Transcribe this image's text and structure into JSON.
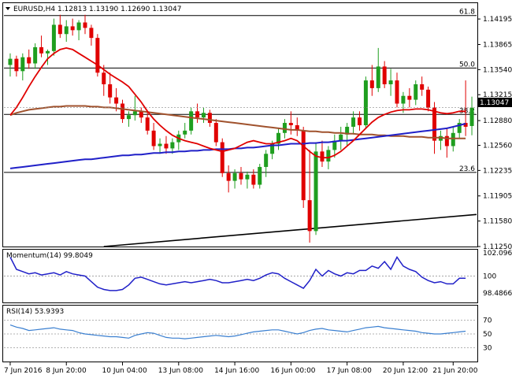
{
  "main": {
    "title": "EURUSD,H4  1.12813 1.13190 1.12690 1.13047",
    "price_ticks": [
      "1.14195",
      "1.13865",
      "1.13540",
      "1.13215",
      "1.12880",
      "1.12560",
      "1.12235",
      "1.11905",
      "1.11580",
      "1.11250"
    ],
    "current_price": "1.13047",
    "current_price_value": 1.13047,
    "fib_levels": [
      {
        "label": "61.8",
        "price": 1.1424
      },
      {
        "label": "50.0",
        "price": 1.1356
      },
      {
        "label": "38.2",
        "price": 1.1296
      },
      {
        "label": "23.6",
        "price": 1.1221
      }
    ],
    "colors": {
      "up": "#1f9e1f",
      "down": "#e00000",
      "sma20": "#e00000",
      "sma100": "#2020c8",
      "sma200": "#a0522d",
      "trend": "#000000",
      "fib": "#000000"
    }
  },
  "momentum": {
    "title": "Momentum(14) 99.8049",
    "ticks": [
      "102.0969",
      "100",
      "98.4866"
    ]
  },
  "rsi": {
    "title": "RSI(14) 53.9393",
    "ticks": [
      "70",
      "50",
      "30"
    ]
  },
  "xaxis": {
    "labels": [
      "7 Jun 2016",
      "8 Jun 20:00",
      "10 Jun 04:00",
      "13 Jun 08:00",
      "14 Jun 16:00",
      "16 Jun 00:00",
      "17 Jun 08:00",
      "20 Jun 12:00",
      "21 Jun 20:00"
    ]
  },
  "chart_data": [
    {
      "type": "candlestick",
      "title": "EURUSD,H4  1.12813 1.13190 1.12690 1.13047",
      "ylim": [
        1.1125,
        1.144
      ],
      "ohlc": [
        [
          1.136,
          1.1375,
          1.1345,
          1.1368
        ],
        [
          1.1368,
          1.1372,
          1.1345,
          1.1352
        ],
        [
          1.1352,
          1.1375,
          1.134,
          1.137
        ],
        [
          1.137,
          1.138,
          1.1355,
          1.1362
        ],
        [
          1.1362,
          1.1388,
          1.1355,
          1.1383
        ],
        [
          1.1383,
          1.1398,
          1.137,
          1.1375
        ],
        [
          1.1375,
          1.138,
          1.136,
          1.1378
        ],
        [
          1.1378,
          1.142,
          1.1372,
          1.1412
        ],
        [
          1.1412,
          1.1425,
          1.1395,
          1.14
        ],
        [
          1.14,
          1.1418,
          1.139,
          1.141
        ],
        [
          1.141,
          1.142,
          1.1398,
          1.1405
        ],
        [
          1.1405,
          1.1418,
          1.1392,
          1.1415
        ],
        [
          1.1415,
          1.1425,
          1.14,
          1.1408
        ],
        [
          1.1408,
          1.1412,
          1.1385,
          1.1395
        ],
        [
          1.1395,
          1.14,
          1.1345,
          1.135
        ],
        [
          1.135,
          1.136,
          1.132,
          1.1335
        ],
        [
          1.1335,
          1.135,
          1.131,
          1.1318
        ],
        [
          1.1318,
          1.133,
          1.13,
          1.131
        ],
        [
          1.131,
          1.1315,
          1.1285,
          1.129
        ],
        [
          1.129,
          1.13,
          1.128,
          1.1295
        ],
        [
          1.1295,
          1.132,
          1.1288,
          1.13
        ],
        [
          1.13,
          1.1305,
          1.1285,
          1.1292
        ],
        [
          1.1292,
          1.13,
          1.127,
          1.1275
        ],
        [
          1.1275,
          1.1285,
          1.125,
          1.1255
        ],
        [
          1.1255,
          1.1265,
          1.1245,
          1.1258
        ],
        [
          1.1258,
          1.1268,
          1.1245,
          1.1252
        ],
        [
          1.1252,
          1.1265,
          1.1245,
          1.126
        ],
        [
          1.126,
          1.1275,
          1.125,
          1.127
        ],
        [
          1.127,
          1.1285,
          1.1265,
          1.1275
        ],
        [
          1.1275,
          1.1305,
          1.127,
          1.13
        ],
        [
          1.13,
          1.131,
          1.1285,
          1.1292
        ],
        [
          1.1292,
          1.1305,
          1.1285,
          1.1298
        ],
        [
          1.1298,
          1.1302,
          1.128,
          1.1285
        ],
        [
          1.1285,
          1.129,
          1.1255,
          1.126
        ],
        [
          1.126,
          1.1265,
          1.1215,
          1.122
        ],
        [
          1.122,
          1.123,
          1.1195,
          1.121
        ],
        [
          1.121,
          1.1225,
          1.12,
          1.122
        ],
        [
          1.122,
          1.1228,
          1.1205,
          1.1212
        ],
        [
          1.1212,
          1.1222,
          1.12,
          1.1218
        ],
        [
          1.1218,
          1.1225,
          1.12,
          1.1205
        ],
        [
          1.1205,
          1.1232,
          1.12,
          1.1228
        ],
        [
          1.1228,
          1.125,
          1.1215,
          1.1245
        ],
        [
          1.1245,
          1.1262,
          1.1238,
          1.1258
        ],
        [
          1.1258,
          1.1278,
          1.125,
          1.1272
        ],
        [
          1.1272,
          1.129,
          1.1265,
          1.1285
        ],
        [
          1.1285,
          1.13,
          1.127,
          1.1282
        ],
        [
          1.1282,
          1.1292,
          1.1268,
          1.1275
        ],
        [
          1.1275,
          1.128,
          1.1175,
          1.1185
        ],
        [
          1.1185,
          1.125,
          1.113,
          1.1145
        ],
        [
          1.1145,
          1.126,
          1.114,
          1.1248
        ],
        [
          1.1248,
          1.1262,
          1.1228,
          1.1235
        ],
        [
          1.1235,
          1.1255,
          1.1225,
          1.125
        ],
        [
          1.125,
          1.127,
          1.124,
          1.1262
        ],
        [
          1.1262,
          1.128,
          1.125,
          1.127
        ],
        [
          1.127,
          1.1285,
          1.1255,
          1.128
        ],
        [
          1.128,
          1.13,
          1.127,
          1.1292
        ],
        [
          1.1292,
          1.13,
          1.1275,
          1.1282
        ],
        [
          1.1282,
          1.1345,
          1.1278,
          1.134
        ],
        [
          1.134,
          1.136,
          1.132,
          1.133
        ],
        [
          1.133,
          1.1382,
          1.1325,
          1.1358
        ],
        [
          1.1358,
          1.1365,
          1.133,
          1.1335
        ],
        [
          1.1335,
          1.1355,
          1.132,
          1.134
        ],
        [
          1.134,
          1.135,
          1.1305,
          1.131
        ],
        [
          1.131,
          1.1325,
          1.1298,
          1.132
        ],
        [
          1.132,
          1.133,
          1.1305,
          1.1315
        ],
        [
          1.1315,
          1.134,
          1.1308,
          1.1335
        ],
        [
          1.1335,
          1.1345,
          1.132,
          1.1328
        ],
        [
          1.1328,
          1.1332,
          1.13,
          1.1305
        ],
        [
          1.1305,
          1.1312,
          1.1245,
          1.1262
        ],
        [
          1.1262,
          1.1275,
          1.125,
          1.1268
        ],
        [
          1.1268,
          1.1278,
          1.124,
          1.1255
        ],
        [
          1.1255,
          1.128,
          1.1248,
          1.1272
        ],
        [
          1.1272,
          1.129,
          1.1265,
          1.1285
        ],
        [
          1.1285,
          1.134,
          1.1268,
          1.128
        ],
        [
          1.1281,
          1.1319,
          1.1269,
          1.13047
        ]
      ],
      "sma20": [
        1.1295,
        1.1305,
        1.1318,
        1.1332,
        1.1345,
        1.1357,
        1.1368,
        1.1375,
        1.138,
        1.1382,
        1.138,
        1.1375,
        1.137,
        1.1365,
        1.136,
        1.1354,
        1.1348,
        1.1343,
        1.1338,
        1.1332,
        1.1322,
        1.1312,
        1.13,
        1.129,
        1.1282,
        1.1275,
        1.1269,
        1.1265,
        1.1262,
        1.126,
        1.1258,
        1.1255,
        1.1252,
        1.125,
        1.1248,
        1.125,
        1.1252,
        1.1256,
        1.126,
        1.1262,
        1.126,
        1.1258,
        1.1258,
        1.126,
        1.1262,
        1.1265,
        1.1262,
        1.1255,
        1.1248,
        1.1242,
        1.124,
        1.124,
        1.1243,
        1.1248,
        1.1255,
        1.1262,
        1.127,
        1.1278,
        1.1286,
        1.1292,
        1.1296,
        1.1299,
        1.1301,
        1.1302,
        1.1302,
        1.1303,
        1.1303,
        1.1302,
        1.13,
        1.1298,
        1.1297,
        1.1298,
        1.13,
        1.13
      ],
      "sma100": [
        1.1226,
        1.1227,
        1.1228,
        1.1229,
        1.123,
        1.1231,
        1.1232,
        1.1233,
        1.1234,
        1.1235,
        1.1236,
        1.1237,
        1.1238,
        1.1238,
        1.1239,
        1.124,
        1.1241,
        1.1242,
        1.1243,
        1.1243,
        1.1244,
        1.1244,
        1.1245,
        1.1246,
        1.1246,
        1.1247,
        1.1247,
        1.1248,
        1.1248,
        1.1249,
        1.1249,
        1.125,
        1.125,
        1.1251,
        1.1251,
        1.1251,
        1.1252,
        1.1252,
        1.1253,
        1.1253,
        1.1254,
        1.1255,
        1.1256,
        1.1256,
        1.1257,
        1.1258,
        1.1258,
        1.1258,
        1.1259,
        1.1259,
        1.126,
        1.126,
        1.1261,
        1.1262,
        1.1262,
        1.1263,
        1.1264,
        1.1265,
        1.1266,
        1.1267,
        1.1268,
        1.1269,
        1.127,
        1.1271,
        1.1272,
        1.1273,
        1.1274,
        1.1275,
        1.1276,
        1.1277,
        1.1278,
        1.128,
        1.1282,
        1.1284
      ],
      "sma200": [
        1.1295,
        1.1298,
        1.13,
        1.1302,
        1.1303,
        1.1304,
        1.1305,
        1.1306,
        1.1306,
        1.1307,
        1.1307,
        1.1307,
        1.1307,
        1.1306,
        1.1306,
        1.1305,
        1.1305,
        1.1304,
        1.1303,
        1.1302,
        1.1301,
        1.13,
        1.1299,
        1.1298,
        1.1297,
        1.1296,
        1.1295,
        1.1294,
        1.1293,
        1.1292,
        1.1291,
        1.129,
        1.1289,
        1.1288,
        1.1287,
        1.1286,
        1.1285,
        1.1284,
        1.1283,
        1.1282,
        1.1281,
        1.128,
        1.1279,
        1.1278,
        1.1277,
        1.1276,
        1.1276,
        1.1275,
        1.1274,
        1.1274,
        1.1273,
        1.1273,
        1.1272,
        1.1272,
        1.1271,
        1.1271,
        1.127,
        1.127,
        1.127,
        1.1269,
        1.1269,
        1.1268,
        1.1268,
        1.1268,
        1.1267,
        1.1267,
        1.1267,
        1.1266,
        1.1266,
        1.1266,
        1.1265,
        1.1265,
        1.1265,
        1.1265
      ],
      "trendline": [
        [
          15,
          1.1125
        ],
        [
          74,
          1.1166
        ]
      ]
    },
    {
      "type": "line",
      "title": "Momentum(14) 99.8049",
      "ylim": [
        97.7,
        102.3
      ],
      "values": [
        101.7,
        100.6,
        100.4,
        100.2,
        100.3,
        100.1,
        100.2,
        100.3,
        100.1,
        100.4,
        100.2,
        100.1,
        100.0,
        99.5,
        99.0,
        98.8,
        98.7,
        98.7,
        98.8,
        99.2,
        99.8,
        99.9,
        99.7,
        99.5,
        99.3,
        99.2,
        99.3,
        99.4,
        99.5,
        99.4,
        99.5,
        99.6,
        99.7,
        99.6,
        99.4,
        99.4,
        99.5,
        99.6,
        99.7,
        99.6,
        99.8,
        100.1,
        100.3,
        100.2,
        99.8,
        99.5,
        99.2,
        98.9,
        99.6,
        100.6,
        100.0,
        100.5,
        100.2,
        100.0,
        100.3,
        100.2,
        100.5,
        100.5,
        100.9,
        100.7,
        101.3,
        100.6,
        101.7,
        100.9,
        100.6,
        100.4,
        99.9,
        99.6,
        99.4,
        99.5,
        99.3,
        99.3,
        99.8,
        99.8
      ]
    },
    {
      "type": "line",
      "title": "RSI(14) 53.9393",
      "ylim": [
        10,
        90
      ],
      "values": [
        63,
        60,
        58,
        55,
        56,
        57,
        58,
        59,
        57,
        56,
        55,
        52,
        50,
        49,
        48,
        47,
        46,
        46,
        45,
        44,
        48,
        50,
        52,
        51,
        48,
        45,
        44,
        44,
        43,
        44,
        45,
        46,
        47,
        48,
        47,
        46,
        47,
        49,
        51,
        53,
        54,
        55,
        56,
        56,
        54,
        52,
        50,
        52,
        55,
        57,
        58,
        56,
        55,
        54,
        53,
        55,
        57,
        59,
        60,
        61,
        59,
        58,
        57,
        56,
        55,
        54,
        52,
        51,
        50,
        50,
        51,
        52,
        53,
        54
      ]
    }
  ]
}
